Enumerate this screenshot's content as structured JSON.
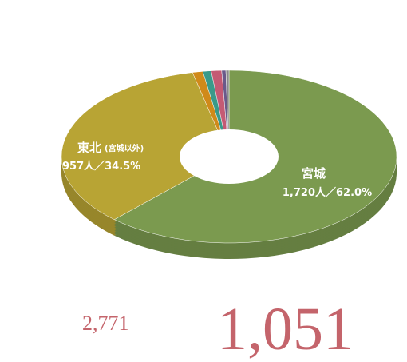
{
  "chart_data": {
    "type": "donut3d",
    "categories": [
      "宮城",
      "東北",
      null,
      null,
      null,
      null,
      null
    ],
    "values": [
      62.0,
      34.5,
      1.0,
      0.8,
      1.0,
      0.4,
      0.3
    ],
    "value_labels": [
      "1,720人／62.0%",
      "957人／34.5%",
      null,
      null,
      null,
      null,
      null
    ],
    "colors": [
      "#7b9a4f",
      "#b8a434",
      "#d08a1a",
      "#3a9a8a",
      "#c45a74",
      "#6a5a8a",
      "#8a8a8a"
    ],
    "annotations": [
      "(宮城以外)",
      "2,771",
      "1,051"
    ]
  }
}
